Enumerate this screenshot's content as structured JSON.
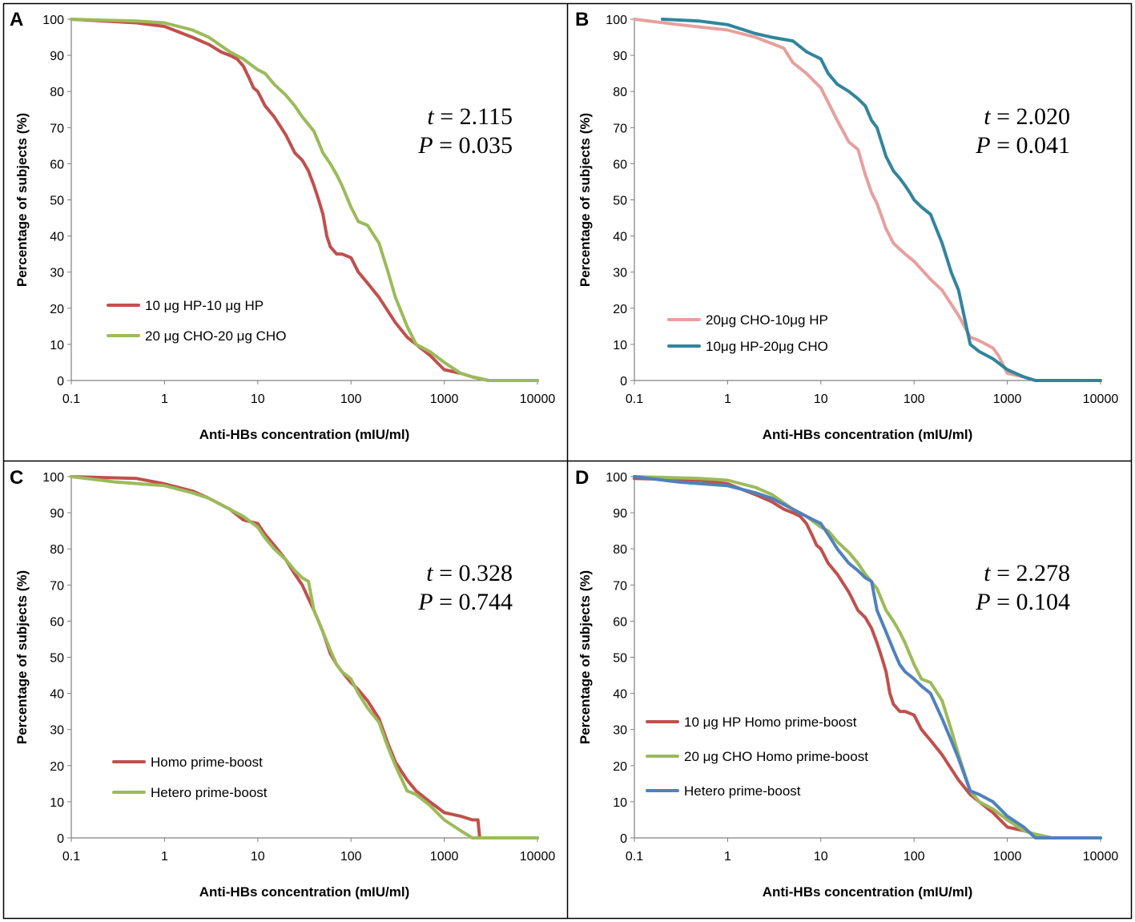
{
  "chart_data": [
    {
      "panel": "A",
      "type": "line",
      "xscale": "log",
      "xlim": [
        0.1,
        10000
      ],
      "ylim": [
        0,
        100
      ],
      "xticks": [
        "0.1",
        "1",
        "10",
        "100",
        "1000",
        "10000"
      ],
      "yticks": [
        "0",
        "10",
        "20",
        "30",
        "40",
        "50",
        "60",
        "70",
        "80",
        "90",
        "100"
      ],
      "xlabel": "Anti-HBs concentration (mIU/ml)",
      "ylabel": "Percentage of subjects (%)",
      "stat_t": "2.115",
      "stat_p": "0.035",
      "series": [
        {
          "name": "10 μg HP-10 μg HP",
          "color": "#c0504d",
          "x": [
            0.1,
            0.5,
            1,
            2,
            3,
            4,
            5,
            6,
            7,
            8,
            9,
            10,
            12,
            15,
            20,
            25,
            30,
            35,
            40,
            45,
            50,
            55,
            60,
            70,
            80,
            100,
            120,
            150,
            200,
            300,
            400,
            500,
            700,
            1000,
            1500,
            2000,
            3000,
            5000,
            10000
          ],
          "y": [
            100,
            99,
            98,
            95,
            93,
            91,
            90,
            89,
            87,
            84,
            81,
            80,
            76,
            73,
            68,
            63,
            61,
            58,
            54,
            50,
            46,
            40,
            37,
            35,
            35,
            34,
            30,
            27,
            23,
            16,
            12,
            10,
            7,
            3,
            2,
            1,
            0,
            0,
            0
          ]
        },
        {
          "name": "20 μg CHO-20 μg CHO",
          "color": "#9bbb59",
          "x": [
            0.1,
            0.5,
            1,
            2,
            3,
            5,
            7,
            10,
            12,
            15,
            20,
            25,
            30,
            40,
            50,
            60,
            70,
            80,
            100,
            120,
            150,
            200,
            250,
            300,
            400,
            500,
            700,
            1000,
            1500,
            2000,
            3000,
            5000,
            10000
          ],
          "y": [
            100,
            99.5,
            99,
            97,
            95,
            91,
            89,
            86,
            85,
            82,
            79,
            76,
            73,
            69,
            63,
            60,
            57,
            54,
            48,
            44,
            43,
            38,
            30,
            23,
            15,
            10,
            8,
            5,
            2,
            1,
            0,
            0,
            0
          ]
        }
      ]
    },
    {
      "panel": "B",
      "type": "line",
      "xscale": "log",
      "xlim": [
        0.1,
        10000
      ],
      "ylim": [
        0,
        100
      ],
      "xticks": [
        "0.1",
        "1",
        "10",
        "100",
        "1000",
        "10000"
      ],
      "yticks": [
        "0",
        "10",
        "20",
        "30",
        "40",
        "50",
        "60",
        "70",
        "80",
        "90",
        "100"
      ],
      "xlabel": "Anti-HBs concentration (mIU/ml)",
      "ylabel": "Percentage of subjects (%)",
      "stat_t": "2.020",
      "stat_p": "0.041",
      "series": [
        {
          "name": "20μg CHO-10μg HP",
          "color": "#e6a09e",
          "x": [
            0.1,
            0.3,
            1,
            2,
            4,
            5,
            7,
            10,
            15,
            20,
            25,
            30,
            35,
            40,
            50,
            60,
            80,
            100,
            150,
            200,
            300,
            400,
            500,
            700,
            800,
            1000,
            1500,
            2000,
            5000,
            10000
          ],
          "y": [
            100,
            98.5,
            97,
            95,
            92,
            88,
            85,
            81,
            72,
            66,
            64,
            57,
            52,
            49,
            42,
            38,
            35,
            33,
            28,
            25,
            18,
            12,
            11,
            9,
            7,
            2,
            1,
            0,
            0,
            0
          ]
        },
        {
          "name": "10μg HP-20μg CHO",
          "color": "#31859c",
          "x": [
            0.2,
            0.5,
            1,
            2,
            3,
            5,
            7,
            10,
            12,
            15,
            20,
            25,
            30,
            35,
            40,
            50,
            60,
            70,
            80,
            90,
            100,
            120,
            150,
            200,
            250,
            300,
            350,
            400,
            500,
            700,
            1000,
            1500,
            2000,
            5000,
            10000
          ],
          "y": [
            100,
            99.5,
            98.5,
            96,
            95,
            94,
            91,
            89,
            85,
            82,
            80,
            78,
            76,
            72,
            70,
            62,
            58,
            56,
            54,
            52,
            50,
            48,
            46,
            38,
            30,
            25,
            17,
            10,
            8,
            6,
            3,
            1,
            0,
            0,
            0
          ]
        }
      ]
    },
    {
      "panel": "C",
      "type": "line",
      "xscale": "log",
      "xlim": [
        0.1,
        10000
      ],
      "ylim": [
        0,
        100
      ],
      "xticks": [
        "0.1",
        "1",
        "10",
        "100",
        "1000",
        "10000"
      ],
      "yticks": [
        "0",
        "10",
        "20",
        "30",
        "40",
        "50",
        "60",
        "70",
        "80",
        "90",
        "100"
      ],
      "xlabel": "Anti-HBs concentration (mIU/ml)",
      "ylabel": "Percentage of subjects (%)",
      "stat_t": "0.328",
      "stat_p": "0.744",
      "series": [
        {
          "name": "Homo prime-boost",
          "color": "#c0504d",
          "x": [
            0.1,
            0.5,
            1,
            2,
            3,
            5,
            7,
            10,
            12,
            15,
            20,
            25,
            30,
            40,
            50,
            60,
            70,
            80,
            100,
            120,
            150,
            200,
            250,
            300,
            400,
            500,
            700,
            1000,
            1500,
            2000,
            2300,
            2400,
            3000,
            5000,
            10000
          ],
          "y": [
            100,
            99.5,
            98,
            96,
            94,
            91,
            88,
            87,
            84,
            81,
            77,
            73,
            70,
            63,
            57,
            51,
            48,
            46,
            43,
            41,
            38,
            33,
            26,
            21,
            16,
            13,
            10,
            7,
            6,
            5,
            5,
            0,
            0,
            0,
            0
          ]
        },
        {
          "name": "Hetero prime-boost",
          "color": "#9bbb59",
          "x": [
            0.1,
            0.3,
            1,
            2,
            3,
            5,
            7,
            10,
            12,
            15,
            20,
            25,
            30,
            35,
            40,
            50,
            60,
            70,
            80,
            100,
            120,
            150,
            200,
            250,
            300,
            400,
            500,
            700,
            1000,
            1500,
            2000,
            3000,
            5000,
            10000
          ],
          "y": [
            100,
            98.5,
            97.5,
            95.5,
            94,
            91,
            89,
            86,
            83,
            80,
            77,
            74,
            72,
            71,
            63,
            57,
            52,
            48,
            46,
            44,
            40,
            36,
            32,
            25,
            20,
            13,
            12,
            9,
            5,
            2,
            0,
            0,
            0,
            0
          ]
        }
      ]
    },
    {
      "panel": "D",
      "type": "line",
      "xscale": "log",
      "xlim": [
        0.1,
        10000
      ],
      "ylim": [
        0,
        100
      ],
      "xticks": [
        "0.1",
        "1",
        "10",
        "100",
        "1000",
        "10000"
      ],
      "yticks": [
        "0",
        "10",
        "20",
        "30",
        "40",
        "50",
        "60",
        "70",
        "80",
        "90",
        "100"
      ],
      "xlabel": "Anti-HBs concentration (mIU/ml)",
      "ylabel": "Percentage of subjects (%)",
      "stat_t": "2.278",
      "stat_p": "0.104",
      "series": [
        {
          "name": "10 μg HP Homo prime-boost",
          "color": "#c0504d",
          "x": [
            0.1,
            0.5,
            1,
            2,
            3,
            4,
            5,
            6,
            7,
            8,
            9,
            10,
            12,
            15,
            20,
            25,
            30,
            35,
            40,
            45,
            50,
            55,
            60,
            70,
            80,
            100,
            120,
            150,
            200,
            300,
            400,
            500,
            700,
            1000,
            1500,
            2000,
            3000,
            5000,
            10000
          ],
          "y": [
            99.5,
            99,
            98,
            95,
            93,
            91,
            90,
            89,
            87,
            84,
            81,
            80,
            76,
            73,
            68,
            63,
            61,
            58,
            54,
            50,
            46,
            40,
            37,
            35,
            35,
            34,
            30,
            27,
            23,
            16,
            12,
            10,
            7,
            3,
            2,
            1,
            0,
            0,
            0
          ]
        },
        {
          "name": "20 μg CHO Homo prime-boost",
          "color": "#9bbb59",
          "x": [
            0.1,
            0.5,
            1,
            2,
            3,
            5,
            7,
            10,
            12,
            15,
            20,
            25,
            30,
            40,
            50,
            60,
            70,
            80,
            100,
            120,
            150,
            200,
            250,
            300,
            400,
            500,
            700,
            1000,
            1500,
            2000,
            3000,
            5000,
            10000
          ],
          "y": [
            100,
            99.5,
            99,
            97,
            95,
            91,
            89,
            86,
            85,
            82,
            79,
            76,
            73,
            69,
            63,
            60,
            57,
            54,
            48,
            44,
            43,
            38,
            30,
            23,
            13,
            10,
            8,
            5,
            2,
            1,
            0,
            0,
            0
          ]
        },
        {
          "name": "Hetero prime-boost",
          "color": "#4f81bd",
          "x": [
            0.1,
            0.3,
            1,
            2,
            3,
            5,
            7,
            10,
            12,
            15,
            20,
            25,
            30,
            35,
            40,
            50,
            60,
            70,
            80,
            100,
            120,
            150,
            200,
            250,
            300,
            400,
            500,
            700,
            1000,
            1500,
            2000,
            3000,
            5000,
            10000
          ],
          "y": [
            100,
            98.5,
            97.5,
            95.5,
            94,
            91,
            89,
            87,
            84,
            80,
            76,
            74,
            72,
            71,
            63,
            57,
            52,
            48,
            46,
            44,
            42,
            40,
            33,
            27,
            22,
            13,
            12,
            10,
            6,
            3,
            0,
            0,
            0,
            0
          ]
        }
      ]
    }
  ]
}
